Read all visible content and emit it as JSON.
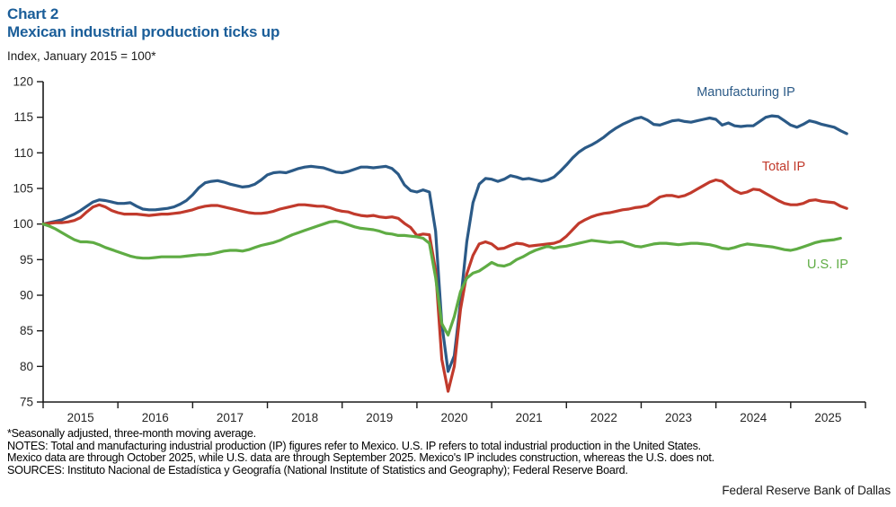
{
  "header": {
    "chart_label": "Chart 2",
    "title": "Mexican industrial production ticks up",
    "unit_label": "Index, January 2015 = 100*"
  },
  "chart_data": {
    "type": "line",
    "title": "Mexican industrial production ticks up",
    "ylabel": "Index, January 2015 = 100*",
    "frequency": "monthly",
    "x_start": "2015-01",
    "ylim": [
      75,
      120
    ],
    "yticks": [
      75,
      80,
      85,
      90,
      95,
      100,
      105,
      110,
      115,
      120
    ],
    "year_tick_labels": [
      "2015",
      "2016",
      "2017",
      "2018",
      "2019",
      "2020",
      "2021",
      "2022",
      "2023",
      "2024",
      "2025"
    ],
    "grid": false,
    "legend_position": "inline-labels",
    "series": [
      {
        "name": "Manufacturing IP",
        "color": "#2B5A87",
        "ends": "2025-10",
        "values": [
          100.0,
          100.2,
          100.4,
          100.6,
          101.0,
          101.4,
          101.9,
          102.5,
          103.1,
          103.4,
          103.3,
          103.1,
          102.9,
          102.9,
          103.0,
          102.5,
          102.1,
          102.0,
          102.0,
          102.1,
          102.2,
          102.4,
          102.8,
          103.3,
          104.1,
          105.1,
          105.8,
          106.0,
          106.1,
          105.9,
          105.6,
          105.4,
          105.2,
          105.3,
          105.6,
          106.2,
          106.9,
          107.2,
          107.3,
          107.2,
          107.5,
          107.8,
          108.0,
          108.1,
          108.0,
          107.9,
          107.6,
          107.3,
          107.2,
          107.4,
          107.7,
          108.0,
          108.0,
          107.9,
          108.0,
          108.1,
          107.8,
          107.0,
          105.5,
          104.7,
          104.5,
          104.8,
          104.5,
          99.0,
          86.0,
          79.3,
          81.5,
          89.0,
          97.5,
          103.0,
          105.6,
          106.4,
          106.3,
          106.0,
          106.3,
          106.8,
          106.6,
          106.3,
          106.4,
          106.2,
          106.0,
          106.2,
          106.6,
          107.4,
          108.3,
          109.3,
          110.1,
          110.7,
          111.1,
          111.6,
          112.2,
          112.9,
          113.5,
          114.0,
          114.4,
          114.8,
          115.0,
          114.6,
          114.0,
          113.9,
          114.2,
          114.5,
          114.6,
          114.4,
          114.3,
          114.5,
          114.7,
          114.9,
          114.7,
          113.9,
          114.2,
          113.8,
          113.7,
          113.8,
          113.8,
          114.4,
          115.0,
          115.2,
          115.1,
          114.5,
          113.9,
          113.6,
          114.0,
          114.5,
          114.3,
          114.0,
          113.8,
          113.6,
          113.1,
          112.7
        ]
      },
      {
        "name": "Total IP",
        "color": "#C13A2C",
        "ends": "2025-10",
        "values": [
          100.0,
          100.1,
          100.2,
          100.2,
          100.3,
          100.5,
          100.9,
          101.7,
          102.4,
          102.7,
          102.4,
          101.9,
          101.6,
          101.4,
          101.4,
          101.4,
          101.3,
          101.2,
          101.3,
          101.4,
          101.4,
          101.5,
          101.6,
          101.8,
          102.0,
          102.3,
          102.5,
          102.6,
          102.6,
          102.4,
          102.2,
          102.0,
          101.8,
          101.6,
          101.5,
          101.5,
          101.6,
          101.8,
          102.1,
          102.3,
          102.5,
          102.7,
          102.7,
          102.6,
          102.5,
          102.5,
          102.3,
          102.0,
          101.8,
          101.7,
          101.4,
          101.2,
          101.1,
          101.2,
          101.0,
          100.9,
          101.0,
          100.8,
          100.1,
          99.5,
          98.4,
          98.6,
          98.5,
          93.5,
          81.0,
          76.5,
          80.0,
          88.0,
          93.0,
          95.6,
          97.2,
          97.5,
          97.2,
          96.5,
          96.6,
          97.0,
          97.3,
          97.2,
          96.9,
          97.0,
          97.1,
          97.2,
          97.3,
          97.6,
          98.3,
          99.2,
          100.1,
          100.6,
          101.0,
          101.3,
          101.5,
          101.6,
          101.8,
          102.0,
          102.1,
          102.3,
          102.4,
          102.6,
          103.2,
          103.8,
          104.0,
          104.0,
          103.8,
          104.0,
          104.4,
          104.9,
          105.4,
          105.9,
          106.2,
          106.0,
          105.3,
          104.7,
          104.3,
          104.5,
          104.9,
          104.8,
          104.3,
          103.8,
          103.3,
          102.9,
          102.7,
          102.7,
          102.9,
          103.3,
          103.4,
          103.2,
          103.1,
          103.0,
          102.5,
          102.2
        ]
      },
      {
        "name": "U.S. IP",
        "color": "#5FAC44",
        "ends": "2025-09",
        "values": [
          100.0,
          99.7,
          99.3,
          98.8,
          98.3,
          97.8,
          97.5,
          97.5,
          97.4,
          97.1,
          96.7,
          96.4,
          96.1,
          95.8,
          95.5,
          95.3,
          95.2,
          95.2,
          95.3,
          95.4,
          95.4,
          95.4,
          95.4,
          95.5,
          95.6,
          95.7,
          95.7,
          95.8,
          96.0,
          96.2,
          96.3,
          96.3,
          96.2,
          96.4,
          96.7,
          97.0,
          97.2,
          97.4,
          97.7,
          98.1,
          98.5,
          98.8,
          99.1,
          99.4,
          99.7,
          100.0,
          100.3,
          100.4,
          100.2,
          99.9,
          99.6,
          99.4,
          99.3,
          99.2,
          99.0,
          98.7,
          98.6,
          98.4,
          98.4,
          98.3,
          98.2,
          98.0,
          97.3,
          92.5,
          86.0,
          84.4,
          87.0,
          90.5,
          92.4,
          93.1,
          93.4,
          94.0,
          94.6,
          94.2,
          94.1,
          94.4,
          95.0,
          95.4,
          95.9,
          96.3,
          96.6,
          96.9,
          96.6,
          96.8,
          96.9,
          97.1,
          97.3,
          97.5,
          97.7,
          97.6,
          97.5,
          97.4,
          97.5,
          97.5,
          97.2,
          96.9,
          96.8,
          97.0,
          97.2,
          97.3,
          97.3,
          97.2,
          97.1,
          97.2,
          97.3,
          97.3,
          97.2,
          97.1,
          96.9,
          96.6,
          96.5,
          96.7,
          97.0,
          97.2,
          97.1,
          97.0,
          96.9,
          96.8,
          96.6,
          96.4,
          96.3,
          96.5,
          96.8,
          97.1,
          97.4,
          97.6,
          97.7,
          97.8,
          98.0
        ]
      }
    ]
  },
  "footnotes": [
    "*Seasonally adjusted, three-month moving average.",
    "NOTES: Total and manufacturing industrial production (IP) figures refer to Mexico. U.S. IP refers to total industrial production in the United States.",
    "Mexico data are through October 2025, while U.S. data are through September 2025. Mexico's IP includes construction, whereas the U.S. does not.",
    "SOURCES: Instituto Nacional de Estadística y Geografía (National Institute of Statistics and Geography); Federal Reserve Board."
  ],
  "attribution": "Federal Reserve Bank of Dallas"
}
